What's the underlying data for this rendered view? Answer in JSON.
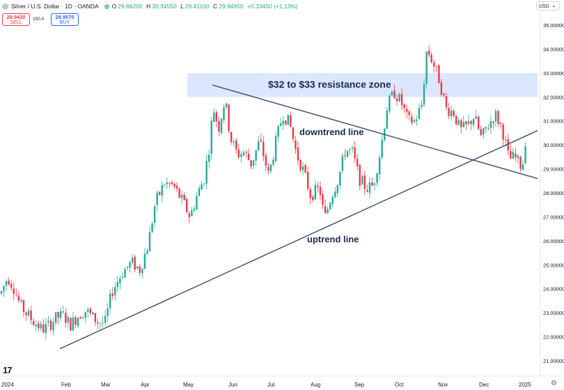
{
  "header": {
    "symbol_title": "Silver / U.S. Dollar · 1D · OANDA",
    "open_label": "O",
    "open_value": "29.66200",
    "high_label": "H",
    "high_value": "30.34550",
    "low_label": "L",
    "low_value": "29.41100",
    "close_label": "C",
    "close_value": "29.94950",
    "change": "+0.33450 (+1.13%)"
  },
  "trade": {
    "sell_price": "29.9420",
    "sell_label": "SELL",
    "spread": "150.0",
    "buy_price": "29.9570",
    "buy_label": "BUY"
  },
  "currency": "USD",
  "annotations": {
    "zone_label": "$32 to $33 resistance zone",
    "downtrend_label": "downtrend line",
    "uptrend_label": "uptrend line"
  },
  "colors": {
    "up": "#22ab94",
    "down": "#f23645",
    "zone": "#dbe7ff",
    "trendline": "#2c3e66",
    "label": "#1a2a52"
  },
  "chart_data": {
    "type": "candlestick",
    "y_ticks": [
      "35.00000",
      "34.00000",
      "33.00000",
      "32.00000",
      "31.00000",
      "30.00000",
      "29.00000",
      "28.00000",
      "27.00000",
      "26.00000",
      "25.00000",
      "24.00000",
      "23.00000",
      "22.00000",
      "21.00000"
    ],
    "x_ticks": [
      "2024",
      "Feb",
      "Mar",
      "Apr",
      "May",
      "Jun",
      "Jul",
      "Aug",
      "Sep",
      "Oct",
      "Nov",
      "Dec",
      "2025"
    ],
    "ylim": [
      20.4,
      35.4
    ],
    "resistance_zone": [
      32.0,
      33.0
    ],
    "price_path": [
      [
        0,
        23.8
      ],
      [
        10,
        24.5
      ],
      [
        18,
        24.1
      ],
      [
        28,
        23.3
      ],
      [
        45,
        22.7
      ],
      [
        60,
        22.3
      ],
      [
        70,
        22.5
      ],
      [
        80,
        22.8
      ],
      [
        90,
        22.9
      ],
      [
        100,
        22.5
      ],
      [
        112,
        22.9
      ],
      [
        122,
        23.1
      ],
      [
        140,
        22.6
      ],
      [
        150,
        22.6
      ],
      [
        160,
        23.9
      ],
      [
        175,
        24.7
      ],
      [
        188,
        25.1
      ],
      [
        200,
        24.8
      ],
      [
        212,
        25.9
      ],
      [
        222,
        27.6
      ],
      [
        235,
        28.4
      ],
      [
        248,
        28.3
      ],
      [
        262,
        27.6
      ],
      [
        272,
        27.0
      ],
      [
        282,
        27.9
      ],
      [
        292,
        28.6
      ],
      [
        300,
        30.0
      ],
      [
        305,
        31.6
      ],
      [
        313,
        30.7
      ],
      [
        322,
        31.9
      ],
      [
        330,
        30.3
      ],
      [
        340,
        29.6
      ],
      [
        350,
        29.7
      ],
      [
        360,
        29.2
      ],
      [
        372,
        30.2
      ],
      [
        385,
        28.7
      ],
      [
        395,
        30.1
      ],
      [
        405,
        31.3
      ],
      [
        415,
        30.9
      ],
      [
        425,
        29.6
      ],
      [
        435,
        28.9
      ],
      [
        445,
        27.9
      ],
      [
        458,
        28.2
      ],
      [
        465,
        26.9
      ],
      [
        475,
        27.9
      ],
      [
        485,
        28.6
      ],
      [
        495,
        29.8
      ],
      [
        505,
        29.7
      ],
      [
        515,
        28.6
      ],
      [
        525,
        28.2
      ],
      [
        535,
        28.3
      ],
      [
        545,
        29.7
      ],
      [
        555,
        31.6
      ],
      [
        565,
        32.2
      ],
      [
        575,
        31.8
      ],
      [
        585,
        31.0
      ],
      [
        595,
        31.0
      ],
      [
        605,
        31.7
      ],
      [
        612,
        34.0
      ],
      [
        620,
        33.5
      ],
      [
        630,
        32.7
      ],
      [
        640,
        31.5
      ],
      [
        650,
        31.4
      ],
      [
        660,
        30.6
      ],
      [
        670,
        30.8
      ],
      [
        680,
        31.2
      ],
      [
        690,
        30.3
      ],
      [
        700,
        30.8
      ],
      [
        710,
        31.3
      ],
      [
        720,
        30.7
      ],
      [
        730,
        29.4
      ],
      [
        738,
        29.5
      ],
      [
        748,
        29.1
      ],
      [
        757,
        29.9
      ]
    ],
    "resistance_zone_label": "$32 to $33 resistance zone",
    "trendlines": [
      {
        "label": "downtrend line",
        "from": [
          "May 18",
          32.5
        ],
        "to": [
          "2025",
          28.6
        ]
      },
      {
        "label": "uptrend line",
        "from": [
          "Jan 20",
          21.5
        ],
        "to": [
          "2025",
          30.6
        ]
      }
    ],
    "grid": false,
    "last_close": 29.9495
  }
}
